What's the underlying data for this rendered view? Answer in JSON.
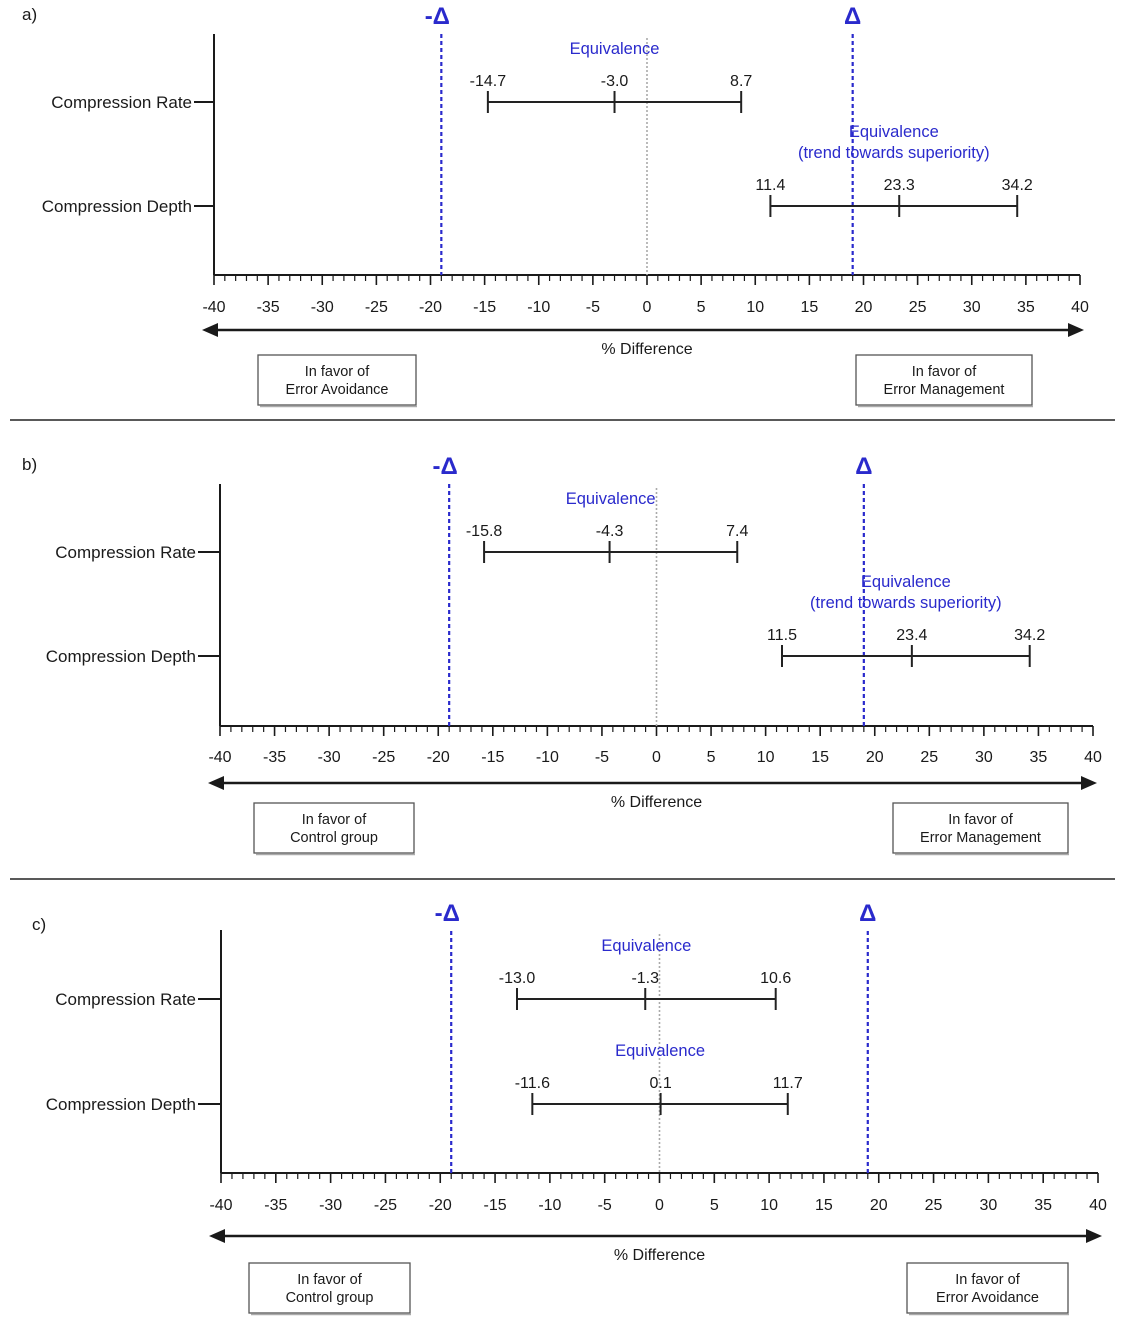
{
  "chart_data": [
    {
      "type": "forest",
      "panel_label": "a)",
      "title": "",
      "xlabel": "% Difference",
      "xlim": [
        -40,
        40
      ],
      "major_ticks": [
        -40,
        -35,
        -30,
        -25,
        -20,
        -15,
        -10,
        -5,
        0,
        5,
        10,
        15,
        20,
        25,
        30,
        35,
        40
      ],
      "tick_labels": [
        "-40",
        "-35",
        "-30",
        "-25",
        "-20",
        "-15",
        "-10",
        "-5",
        "0",
        "5",
        "10",
        "15",
        "20",
        "25",
        "30",
        "35",
        "40"
      ],
      "minor_tick_step": 1,
      "margin_lines": [
        {
          "label": "-Δ",
          "value": -19
        },
        {
          "label": "Δ",
          "value": 19
        }
      ],
      "reference_line": 0,
      "rows": [
        {
          "label": "Compression Rate",
          "lower": -14.7,
          "estimate": -3.0,
          "upper": 8.7,
          "lower_text": "-14.7",
          "estimate_text": "-3.0",
          "upper_text": "8.7",
          "annotation": [
            "Equivalence"
          ]
        },
        {
          "label": "Compression Depth",
          "lower": 11.4,
          "estimate": 23.3,
          "upper": 34.2,
          "lower_text": "11.4",
          "estimate_text": "23.3",
          "upper_text": "34.2",
          "annotation": [
            "Equivalence",
            "(trend towards superiority)"
          ]
        }
      ],
      "favor_left": [
        "In favor of",
        "Error  Avoidance"
      ],
      "favor_right": [
        "In favor of",
        "Error Management"
      ]
    },
    {
      "type": "forest",
      "panel_label": "b)",
      "title": "",
      "xlabel": "% Difference",
      "xlim": [
        -40,
        40
      ],
      "major_ticks": [
        -40,
        -35,
        -30,
        -25,
        -20,
        -15,
        -10,
        -5,
        0,
        5,
        10,
        15,
        20,
        25,
        30,
        35,
        40
      ],
      "tick_labels": [
        "-40",
        "-35",
        "-30",
        "-25",
        "-20",
        "-15",
        "-10",
        "-5",
        "0",
        "5",
        "10",
        "15",
        "20",
        "25",
        "30",
        "35",
        "40"
      ],
      "minor_tick_step": 1,
      "margin_lines": [
        {
          "label": "-Δ",
          "value": -19
        },
        {
          "label": "Δ",
          "value": 19
        }
      ],
      "reference_line": 0,
      "rows": [
        {
          "label": "Compression Rate",
          "lower": -15.8,
          "estimate": -4.3,
          "upper": 7.4,
          "lower_text": "-15.8",
          "estimate_text": "-4.3",
          "upper_text": "7.4",
          "annotation": [
            "Equivalence"
          ]
        },
        {
          "label": "Compression Depth",
          "lower": 11.5,
          "estimate": 23.4,
          "upper": 34.2,
          "lower_text": "11.5",
          "estimate_text": "23.4",
          "upper_text": "34.2",
          "annotation": [
            "Equivalence",
            "(trend towards superiority)"
          ]
        }
      ],
      "favor_left": [
        "In favor of",
        "Control group"
      ],
      "favor_right": [
        "In favor of",
        "Error Management"
      ]
    },
    {
      "type": "forest",
      "panel_label": "c)",
      "title": "",
      "xlabel": "% Difference",
      "xlim": [
        -40,
        40
      ],
      "major_ticks": [
        -40,
        -35,
        -30,
        -25,
        -20,
        -15,
        -10,
        -5,
        0,
        5,
        10,
        15,
        20,
        25,
        30,
        35,
        40
      ],
      "tick_labels": [
        "-40",
        "-35",
        "-30",
        "-25",
        "-20",
        "-15",
        "-10",
        "-5",
        "0",
        "5",
        "10",
        "15",
        "20",
        "25",
        "30",
        "35",
        "40"
      ],
      "minor_tick_step": 1,
      "margin_lines": [
        {
          "label": "-Δ",
          "value": -19
        },
        {
          "label": "Δ",
          "value": 19
        }
      ],
      "reference_line": 0,
      "rows": [
        {
          "label": "Compression Rate",
          "lower": -13.0,
          "estimate": -1.3,
          "upper": 10.6,
          "lower_text": "-13.0",
          "estimate_text": "-1.3",
          "upper_text": "10.6",
          "annotation": [
            "Equivalence"
          ]
        },
        {
          "label": "Compression Depth",
          "lower": -11.6,
          "estimate": 0.1,
          "upper": 11.7,
          "lower_text": "-11.6",
          "estimate_text": "0.1",
          "upper_text": "11.7",
          "annotation": [
            "Equivalence"
          ]
        }
      ],
      "favor_left": [
        "In favor of",
        "Control group"
      ],
      "favor_right": [
        "In favor of",
        "Error  Avoidance"
      ]
    }
  ],
  "colors": {
    "margin": "#2a2acc",
    "annotation": "#2a2acc",
    "axis": "#1a1a1a",
    "reference": "#aaaaaa"
  }
}
